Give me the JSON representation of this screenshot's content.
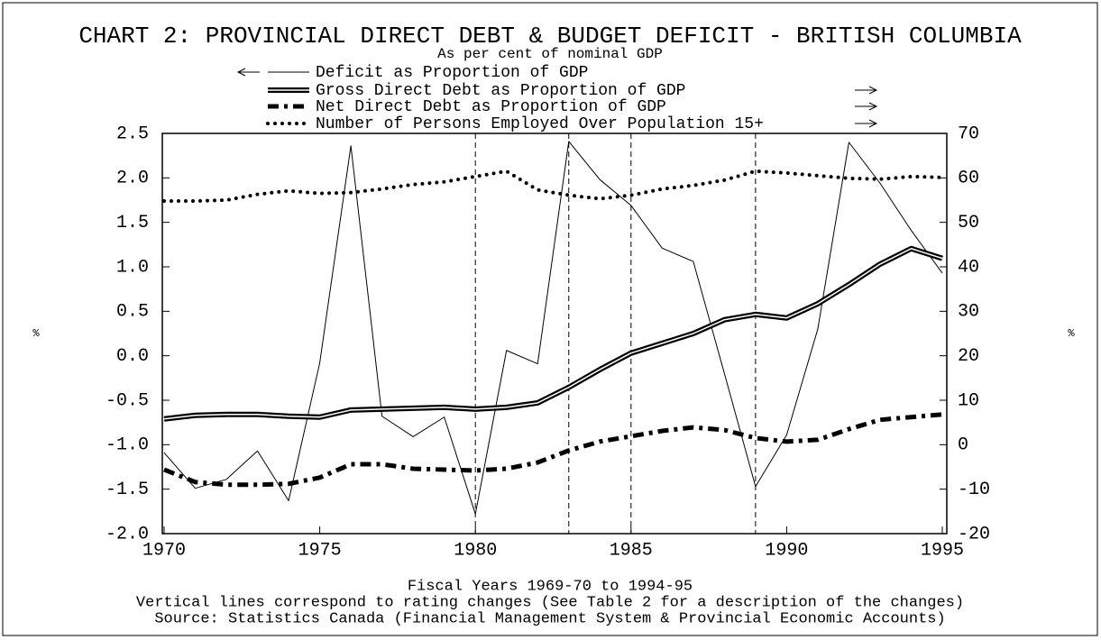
{
  "chart_data": {
    "type": "line",
    "title": "CHART 2: PROVINCIAL DIRECT DEBT & BUDGET DEFICIT - BRITISH COLUMBIA",
    "subtitle": "As per cent of nominal GDP",
    "xlabel": "Fiscal Years 1969-70 to 1994-95",
    "notes": [
      "Vertical lines correspond to rating changes (See Table 2 for a description of the changes)",
      "Source: Statistics Canada (Financial Management System & Provincial Economic Accounts)"
    ],
    "ylabel": "%",
    "y2label": "%",
    "x": [
      1970,
      1971,
      1972,
      1973,
      1974,
      1975,
      1976,
      1977,
      1978,
      1979,
      1980,
      1981,
      1982,
      1983,
      1984,
      1985,
      1986,
      1987,
      1988,
      1989,
      1990,
      1991,
      1992,
      1993,
      1994,
      1995
    ],
    "xlim": [
      1970,
      1995
    ],
    "xticks": [
      1970,
      1975,
      1980,
      1985,
      1990,
      1995
    ],
    "ylim": [
      -2,
      2.5
    ],
    "yticks": [
      {
        "value": -2,
        "label": "-2.0"
      },
      -1.5,
      {
        "value": -1,
        "label": "-1.0"
      },
      -0.5,
      {
        "value": 0,
        "label": "0.0"
      },
      0.5,
      {
        "value": 1,
        "label": "1.0"
      },
      1.5,
      {
        "value": 2,
        "label": "2.0"
      },
      2.5
    ],
    "y2lim": [
      -20,
      70
    ],
    "y2ticks": [
      -20,
      -10,
      0,
      10,
      20,
      30,
      40,
      50,
      60,
      70
    ],
    "rating_changes": [
      1980,
      1983,
      1985,
      1989
    ],
    "series": [
      {
        "name": "Deficit as Proportion of GDP",
        "color": "#000000",
        "line_style": "thin",
        "axis": "y",
        "values": [
          -1.09,
          -1.49,
          -1.39,
          -1.07,
          -1.63,
          -0.08,
          2.36,
          -0.68,
          -0.91,
          -0.69,
          -1.78,
          0.06,
          -0.09,
          2.41,
          1.98,
          1.69,
          1.21,
          1.06,
          -0.2,
          -1.47,
          -0.89,
          0.3,
          2.4,
          1.94,
          1.41,
          0.93
        ]
      },
      {
        "name": "Gross Direct Debt as Proportion of GDP",
        "color": "#000000",
        "line_style": "double",
        "axis": "y2",
        "values": [
          5.8,
          6.6,
          6.8,
          6.8,
          6.4,
          6.2,
          7.8,
          8.0,
          8.2,
          8.4,
          8.0,
          8.4,
          9.4,
          12.9,
          16.9,
          20.6,
          22.8,
          25.0,
          28.1,
          29.3,
          28.5,
          31.7,
          36.0,
          40.6,
          44.1,
          41.9
        ]
      },
      {
        "name": "Net Direct Debt as Proportion of GDP",
        "color": "#000000",
        "line_style": "dashdot",
        "axis": "y2",
        "values": [
          -5.6,
          -8.4,
          -9.0,
          -9.0,
          -8.8,
          -7.4,
          -4.4,
          -4.4,
          -5.4,
          -5.6,
          -5.8,
          -5.4,
          -4.0,
          -1.3,
          0.7,
          1.9,
          3.1,
          3.9,
          3.3,
          1.5,
          0.7,
          1.1,
          3.5,
          5.6,
          6.2,
          6.8
        ]
      },
      {
        "name": "Number of Persons Employed Over Population 15+",
        "color": "#000000",
        "line_style": "dotted",
        "axis": "y2",
        "values": [
          54.8,
          54.8,
          55.0,
          56.3,
          57.1,
          56.5,
          56.7,
          57.5,
          58.5,
          59.1,
          60.3,
          61.5,
          57.3,
          56.1,
          55.3,
          56.1,
          57.5,
          58.3,
          59.5,
          61.5,
          61.1,
          60.5,
          59.9,
          59.7,
          60.3,
          60.1
        ]
      }
    ]
  }
}
